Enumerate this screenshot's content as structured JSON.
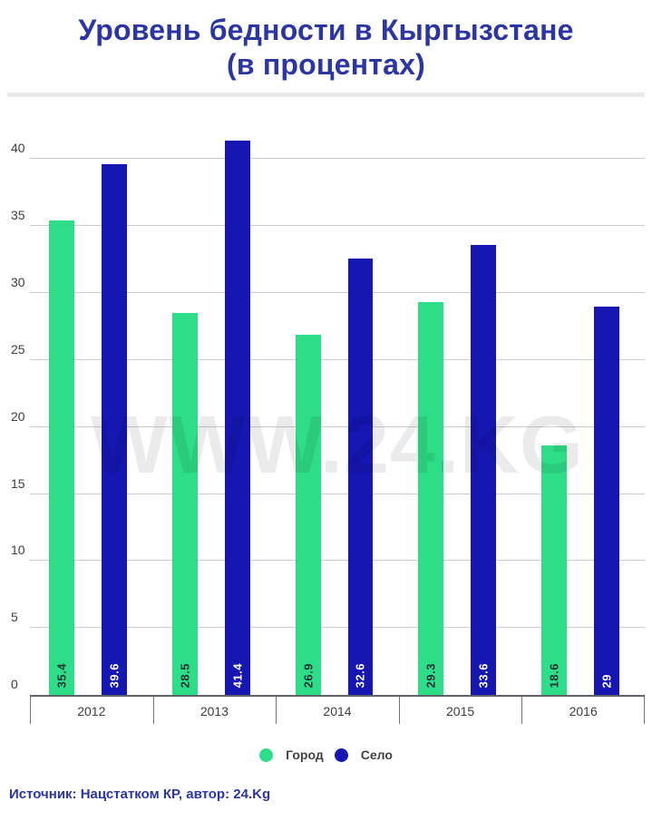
{
  "page": {
    "title_line1": "Уровень бедности в Кыргызстане",
    "title_line2": "(в процентах)",
    "watermark": "WWW.24.KG",
    "source": "Источник: Нацстатком КР, автор: 24.Kg"
  },
  "colors": {
    "title_blue": "#2b35a3",
    "source_blue": "#2b35a3",
    "city_green": "#2edd87",
    "village_blue": "#1616b2",
    "gridline_gray": "#cdcdcd",
    "axis_gray": "#5f6368",
    "tick_text_gray": "#3c4043",
    "divider_gray": "#e9e9e9"
  },
  "chart_data": {
    "type": "bar",
    "title": "Уровень бедности в Кыргызстане (в процентах)",
    "categories": [
      "2012",
      "2013",
      "2014",
      "2015",
      "2016"
    ],
    "series": [
      {
        "name": "Город",
        "color": "#2edd87",
        "label_color": "#263238",
        "values": [
          35.4,
          28.5,
          26.9,
          29.3,
          18.6
        ]
      },
      {
        "name": "Село",
        "color": "#1616b2",
        "label_color": "#ffffff",
        "values": [
          39.6,
          41.4,
          32.6,
          33.6,
          29
        ]
      }
    ],
    "ylim": [
      0,
      42.4
    ],
    "yticks": [
      0,
      5,
      10,
      15,
      20,
      25,
      30,
      35,
      40
    ],
    "grid": true,
    "legend_position": "bottom",
    "bar_value_labels": "rotated-90-inside-bottom",
    "xlabel": "",
    "ylabel": ""
  }
}
